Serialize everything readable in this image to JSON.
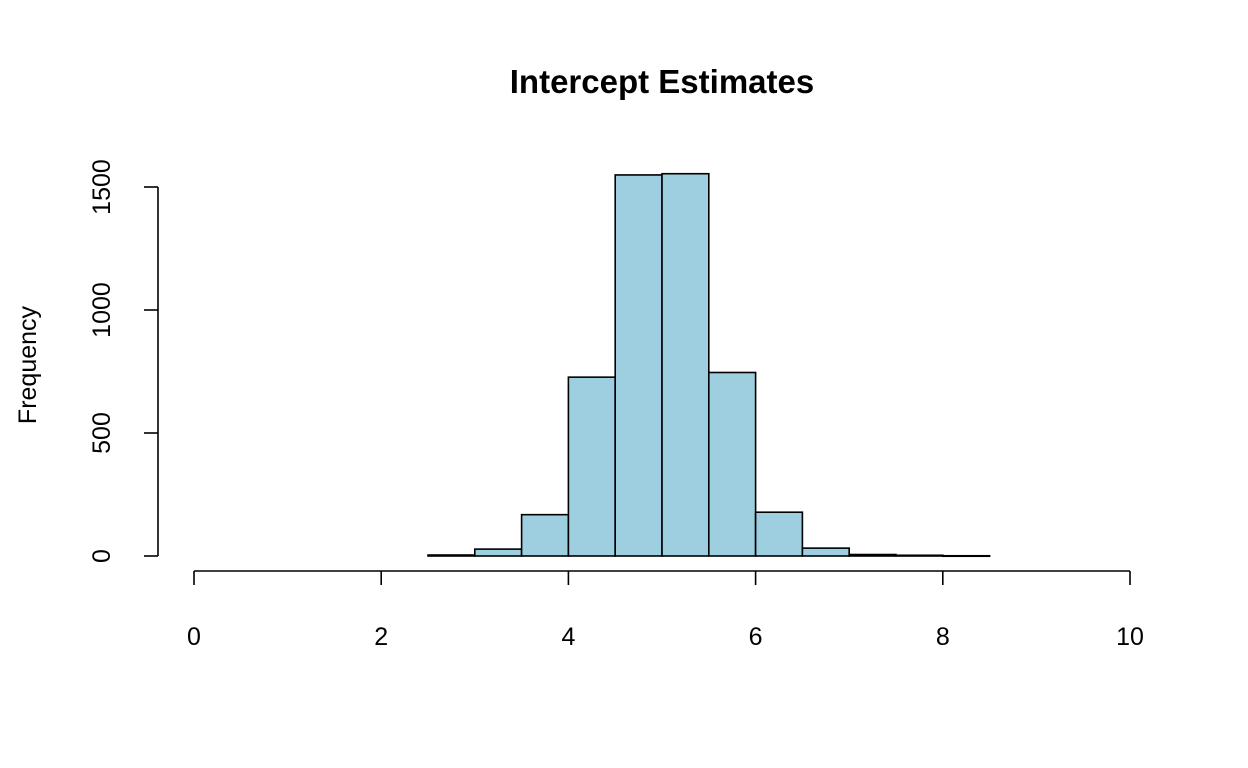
{
  "chart_data": {
    "type": "bar",
    "title": "Intercept Estimates",
    "xlabel": "",
    "ylabel": "Frequency",
    "bin_edges": [
      2.5,
      3.0,
      3.5,
      4.0,
      4.5,
      5.0,
      5.5,
      6.0,
      6.5,
      7.0,
      7.5,
      8.0,
      8.5
    ],
    "values": [
      4,
      28,
      168,
      727,
      1549,
      1554,
      746,
      178,
      32,
      6,
      3,
      1
    ],
    "xlim": [
      0,
      10
    ],
    "ylim": [
      0,
      1500
    ],
    "x_ticks": [
      "0",
      "2",
      "4",
      "6",
      "8",
      "10"
    ],
    "y_ticks": [
      "0",
      "500",
      "1000",
      "1500"
    ],
    "grid": false,
    "colors": {
      "bar_fill": "#9ecfe0",
      "bar_stroke": "#000000"
    }
  }
}
